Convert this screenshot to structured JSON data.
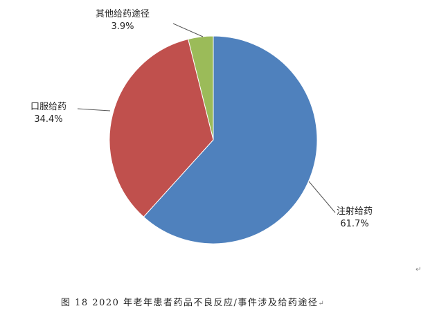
{
  "chart_data": {
    "type": "pie",
    "title": "",
    "start_angle": "12 o'clock, clockwise",
    "slices": [
      {
        "label": "注射给药",
        "value": 61.7,
        "value_label": "61.7%",
        "color": "#4F81BD"
      },
      {
        "label": "口服给药",
        "value": 34.4,
        "value_label": "34.4%",
        "color": "#C0504D"
      },
      {
        "label": "其他给药途径",
        "value": 3.9,
        "value_label": "3.9%",
        "color": "#9BBB59"
      }
    ]
  },
  "caption": "图 18   2020 年老年患者药品不良反应/事件涉及给药途径",
  "paragraph_mark": "↵"
}
